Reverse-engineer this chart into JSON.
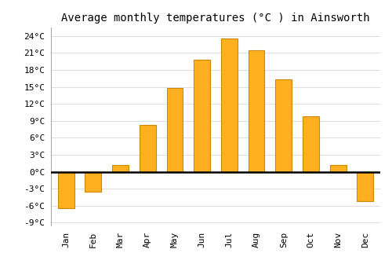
{
  "title": "Average monthly temperatures (°C ) in Ainsworth",
  "months": [
    "Jan",
    "Feb",
    "Mar",
    "Apr",
    "May",
    "Jun",
    "Jul",
    "Aug",
    "Sep",
    "Oct",
    "Nov",
    "Dec"
  ],
  "values": [
    -6.5,
    -3.5,
    1.2,
    8.3,
    14.8,
    19.8,
    23.5,
    21.5,
    16.3,
    9.8,
    1.2,
    -5.2
  ],
  "bar_color": "#FFB020",
  "bar_edge_color": "#CC8800",
  "ylim": [
    -9.5,
    25.5
  ],
  "yticks": [
    -9,
    -6,
    -3,
    0,
    3,
    6,
    9,
    12,
    15,
    18,
    21,
    24
  ],
  "ytick_labels": [
    "-9°C",
    "-6°C",
    "-3°C",
    "0°C",
    "3°C",
    "6°C",
    "9°C",
    "12°C",
    "15°C",
    "18°C",
    "21°C",
    "24°C"
  ],
  "background_color": "#ffffff",
  "grid_color": "#dddddd",
  "title_fontsize": 10,
  "tick_fontsize": 8,
  "zero_line_color": "#000000",
  "bar_width": 0.6,
  "figsize": [
    5.0,
    3.5
  ],
  "dpi": 100
}
